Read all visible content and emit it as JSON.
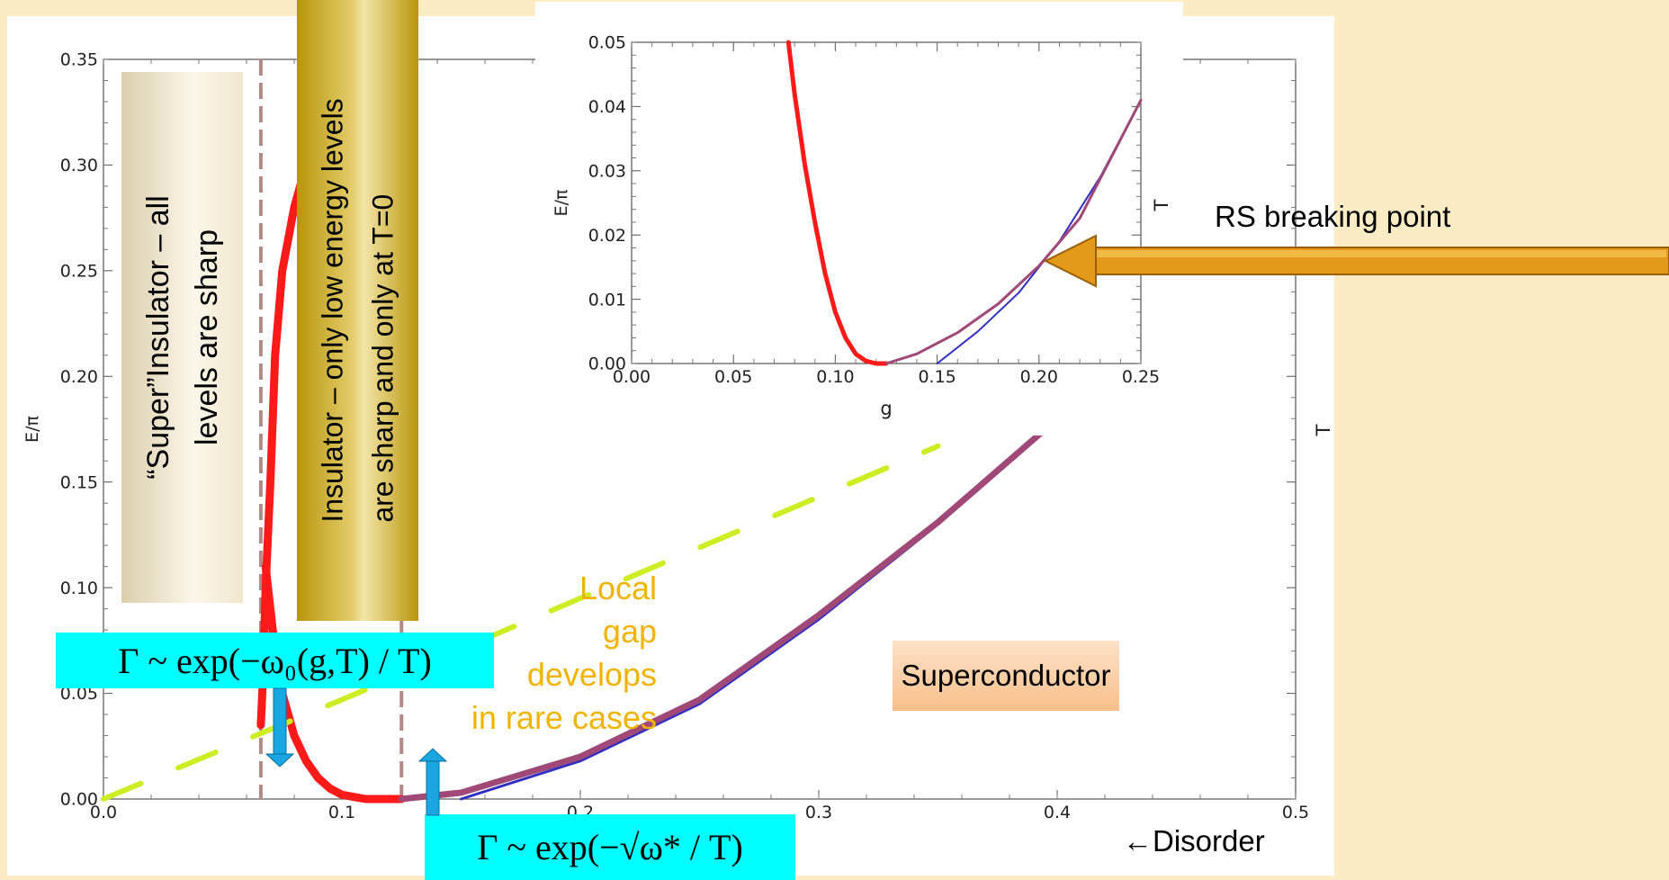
{
  "chart_data": [
    {
      "type": "line",
      "ylabel": "E/π",
      "right_label": "T",
      "xlim": [
        0,
        0.5
      ],
      "ylim": [
        0,
        0.35
      ],
      "x_ticks": [
        "0.0",
        "0.1",
        "0.2",
        "0.3",
        "0.4",
        "0.5"
      ],
      "y_ticks": [
        "0.00",
        "0.05",
        "0.10",
        "0.15",
        "0.20",
        "0.25",
        "0.30",
        "0.35"
      ],
      "series": [
        {
          "color": "#ff1a1a",
          "x": [
            0.066,
            0.067,
            0.068,
            0.07,
            0.072,
            0.075,
            0.08,
            0.085,
            0.09,
            0.095,
            0.1,
            0.105,
            0.11,
            0.115,
            0.12,
            0.125
          ],
          "y": [
            0.035,
            0.06,
            0.1,
            0.15,
            0.21,
            0.25,
            0.28,
            0.3,
            0.315,
            0.318,
            0.318,
            0.318,
            0.318,
            0.318,
            0.318,
            0.318
          ]
        },
        {
          "color": "#ff1a1a",
          "x": [
            0.068,
            0.07,
            0.072,
            0.075,
            0.08,
            0.085,
            0.09,
            0.095,
            0.1,
            0.105,
            0.11,
            0.115,
            0.12,
            0.125
          ],
          "y": [
            0.11,
            0.09,
            0.07,
            0.05,
            0.03,
            0.018,
            0.01,
            0.005,
            0.002,
            0.001,
            0.0,
            0.0,
            0.0,
            0.0
          ]
        },
        {
          "color": "#3030c0",
          "x": [
            0.15,
            0.2,
            0.25,
            0.3,
            0.35,
            0.395
          ],
          "y": [
            0.0,
            0.018,
            0.045,
            0.085,
            0.13,
            0.175
          ]
        },
        {
          "color": "#a04878",
          "x": [
            0.125,
            0.15,
            0.2,
            0.25,
            0.3,
            0.35,
            0.395
          ],
          "y": [
            0.0,
            0.003,
            0.02,
            0.047,
            0.087,
            0.131,
            0.175
          ]
        },
        {
          "color": "#ccee22",
          "x": [
            0.0,
            0.1,
            0.2,
            0.3,
            0.35
          ],
          "y": [
            0.0,
            0.047,
            0.095,
            0.143,
            0.167
          ]
        }
      ],
      "vlines_x": [
        0.066,
        0.125
      ]
    },
    {
      "type": "line",
      "xlabel": "g",
      "ylabel": "E/π",
      "right_label": "T",
      "xlim": [
        0,
        0.25
      ],
      "ylim": [
        0,
        0.05
      ],
      "x_ticks": [
        "0.00",
        "0.05",
        "0.10",
        "0.15",
        "0.20",
        "0.25"
      ],
      "y_ticks": [
        "0.00",
        "0.01",
        "0.02",
        "0.03",
        "0.04",
        "0.05"
      ],
      "series": [
        {
          "color": "#ff1a1a",
          "x": [
            0.077,
            0.08,
            0.085,
            0.09,
            0.095,
            0.1,
            0.105,
            0.11,
            0.115,
            0.12,
            0.125
          ],
          "y": [
            0.05,
            0.042,
            0.031,
            0.022,
            0.014,
            0.008,
            0.004,
            0.0015,
            0.0004,
            0.0,
            0.0
          ]
        },
        {
          "color": "#3030c0",
          "x": [
            0.15,
            0.17,
            0.19,
            0.21,
            0.23,
            0.25
          ],
          "y": [
            0.0,
            0.005,
            0.011,
            0.019,
            0.029,
            0.041
          ]
        },
        {
          "color": "#a04878",
          "x": [
            0.125,
            0.14,
            0.16,
            0.18,
            0.2,
            0.22,
            0.25
          ],
          "y": [
            0.0,
            0.0015,
            0.0048,
            0.0093,
            0.0152,
            0.0226,
            0.041
          ]
        }
      ]
    }
  ],
  "annotations": {
    "super_insulator": [
      "“Super”Insulator  – all",
      "levels are sharp"
    ],
    "insulator": [
      "Insulator – only low energy levels",
      "are sharp and only at T=0"
    ],
    "local_gap": [
      "Local",
      "gap",
      "develops",
      "in rare cases"
    ],
    "superconductor": "Superconductor",
    "rs_breaking": "RS breaking point",
    "disorder": "←Disorder",
    "gamma_exp": "Γ ~ exp(−ω₀(g,T) / T)",
    "gamma_sqrt": "Γ ~ exp(−√ω* / T)"
  },
  "colors": {
    "background": "#fbecc6",
    "red": "#ff1a1a",
    "blue": "#3030c0",
    "purple": "#a04878",
    "yellow_green": "#ccee22",
    "cyan": "#00ffff",
    "orange_text": "#f0b400",
    "arrow": "#d99015"
  }
}
